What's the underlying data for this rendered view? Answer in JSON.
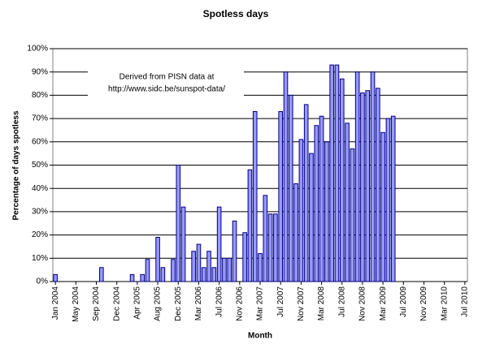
{
  "chart_data": {
    "type": "bar",
    "title": "Spotless days",
    "x_label": "Month",
    "y_label": "Percentage of days spotless",
    "annotation": [
      "Derived from PISN data at",
      "http://www.sidc.be/sunspot-data/"
    ],
    "color": "#9999ff",
    "edge_color": "#000080",
    "grid": true,
    "ylim": [
      0,
      100
    ],
    "yticks": [
      {
        "value": 0,
        "label": "0%"
      },
      {
        "value": 10,
        "label": "10%"
      },
      {
        "value": 20,
        "label": "20%"
      },
      {
        "value": 30,
        "label": "30%"
      },
      {
        "value": 40,
        "label": "40%"
      },
      {
        "value": 50,
        "label": "50%"
      },
      {
        "value": 60,
        "label": "60%"
      },
      {
        "value": 70,
        "label": "70%"
      },
      {
        "value": 80,
        "label": "80%"
      },
      {
        "value": 90,
        "label": "90%"
      },
      {
        "value": 100,
        "label": "100%"
      }
    ],
    "categories": [
      "Jan 2004",
      null,
      null,
      null,
      "May 2004",
      null,
      null,
      null,
      "Sep 2004",
      null,
      null,
      null,
      "Dec 2004",
      null,
      null,
      null,
      "Apr 2005",
      null,
      null,
      null,
      "Aug 2005",
      null,
      null,
      null,
      "Dec 2005",
      null,
      null,
      null,
      "Mar 2006",
      null,
      null,
      null,
      "Jul 2006",
      null,
      null,
      null,
      "Nov 2006",
      null,
      null,
      null,
      "Mar 2007",
      null,
      null,
      null,
      "Jul 2007",
      null,
      null,
      null,
      "Nov 2007",
      null,
      null,
      null,
      "Mar 2008",
      null,
      null,
      null,
      "Jul 2008",
      null,
      null,
      null,
      "Nov 2008",
      null,
      null,
      null,
      "Mar 2009",
      null,
      null,
      null,
      "Jul 2009",
      null,
      null,
      null,
      "Nov 2009",
      null,
      null,
      null,
      "Mar 2010",
      null,
      null,
      null,
      "Jul 2010"
    ],
    "values": [
      3,
      0,
      0,
      0,
      0,
      0,
      0,
      0,
      0,
      6,
      0,
      0,
      0,
      0,
      0,
      3,
      0,
      3,
      9.5,
      0,
      19,
      6,
      0,
      9.5,
      50,
      32,
      0,
      13,
      16,
      6,
      13,
      6,
      32,
      10,
      10,
      26,
      0,
      21,
      48,
      73,
      12,
      37,
      29,
      29,
      73,
      90,
      80,
      42,
      61,
      76,
      55,
      67,
      71,
      60,
      93,
      93,
      87,
      68,
      57,
      90,
      81,
      82,
      90,
      83,
      64,
      70,
      71,
      null,
      null,
      null,
      null,
      null,
      null,
      null,
      null,
      null,
      null,
      null,
      null,
      null,
      null
    ]
  }
}
